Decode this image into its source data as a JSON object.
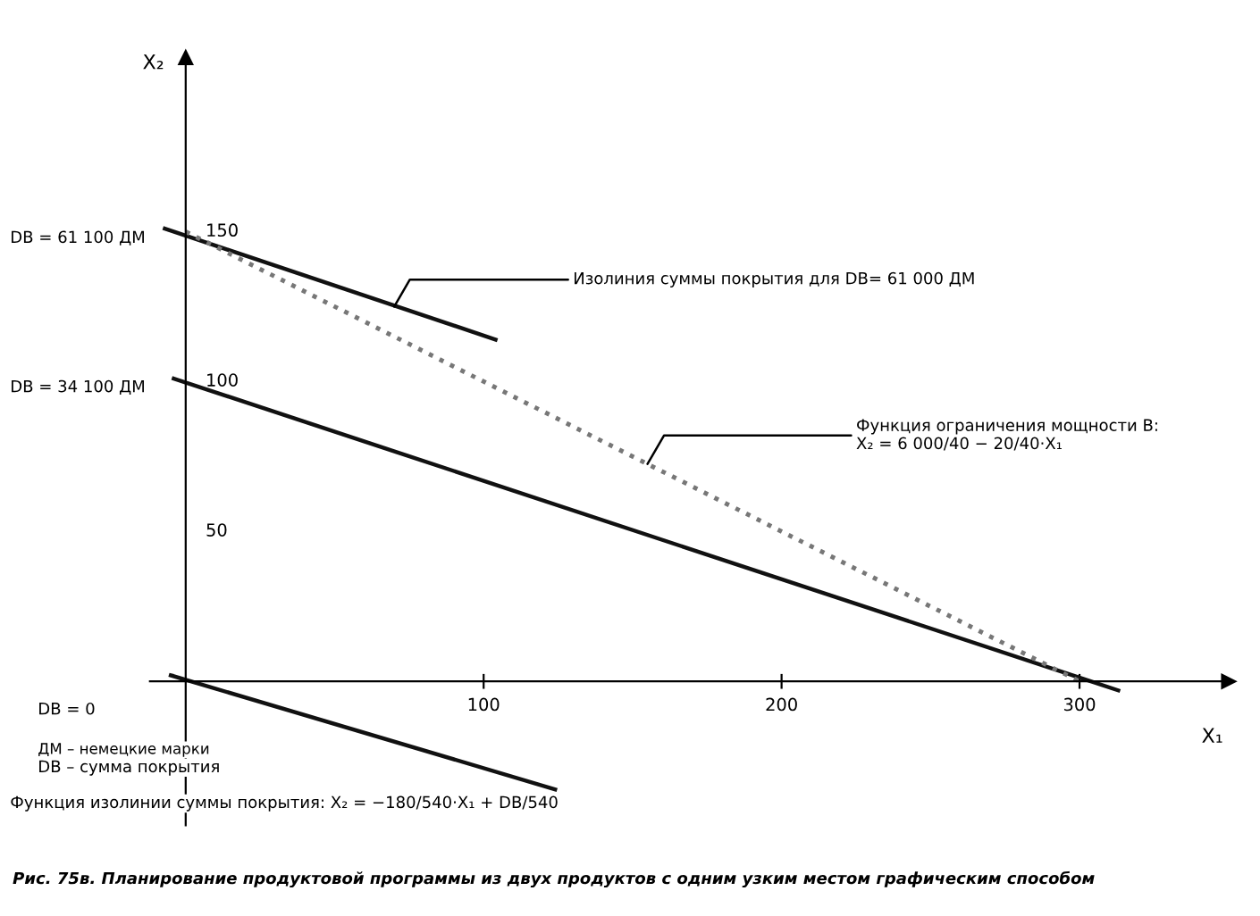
{
  "chart_data": {
    "type": "line",
    "xlabel": "X₁",
    "ylabel": "X₂",
    "xlim": [
      -12,
      350
    ],
    "ylim": [
      -48,
      208
    ],
    "xticks": [
      100,
      200,
      300
    ],
    "yticks": [
      50,
      100,
      150
    ],
    "grid": false,
    "legend": false,
    "marker": "none",
    "series": [
      {
        "color": "#111111",
        "line_style": "solid",
        "x": [
          -7,
          104
        ],
        "values": [
          151,
          114
        ]
      },
      {
        "color": "#111111",
        "line_style": "solid",
        "x": [
          -4,
          313
        ],
        "values": [
          101,
          -3
        ]
      },
      {
        "color": "#111111",
        "line_style": "solid",
        "x": [
          -5,
          124
        ],
        "values": [
          2,
          -36
        ]
      },
      {
        "color": "#777777",
        "line_style": "dotted",
        "x": [
          0,
          300
        ],
        "values": [
          150,
          0
        ]
      }
    ],
    "annotations": [
      "DB = 61 100 ДМ",
      "DB = 34 100 ДМ",
      "DB = 0",
      "ДМ – немецкие марки",
      "DB – сумма покрытия",
      "Функция изолинии суммы покрытия: X₂ = −180/540·X₁ + DB/540",
      {
        "text": "Изолиния суммы покрытия для DB= 61 000 ДМ",
        "x": 70,
        "y": 125
      },
      {
        "text": "Функция ограничения мощности B:\nX₂ = 6 000/40 − 20/40·X₁",
        "x": 155,
        "y": 72.5
      },
      "Рис. 75в. Планирование продуктовой программы из двух продуктов с одним узким местом графическим способом"
    ]
  }
}
